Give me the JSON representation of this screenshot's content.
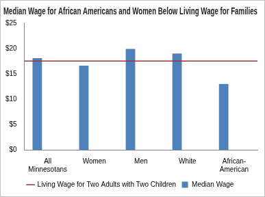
{
  "chart_data": {
    "type": "bar",
    "title": "Median Wage for African Americans and Women Below Living Wage for Families",
    "categories": [
      "All Minnesotans",
      "Women",
      "Men",
      "White",
      "African-American"
    ],
    "series": [
      {
        "name": "Median Wage",
        "type": "bar",
        "color": "#4f81bd",
        "values": [
          18.1,
          16.6,
          19.9,
          19.0,
          13.0
        ]
      },
      {
        "name": "Living Wage for Two Adults with Two Children",
        "type": "line",
        "color": "#953735",
        "values": [
          17.5,
          17.5,
          17.5,
          17.5,
          17.5
        ]
      }
    ],
    "ylim": [
      0,
      25
    ],
    "yticks": [
      {
        "value": 0,
        "label": "$0"
      },
      {
        "value": 5,
        "label": "$5"
      },
      {
        "value": 10,
        "label": "$10"
      },
      {
        "value": 15,
        "label": "$15"
      },
      {
        "value": 20,
        "label": "$20"
      },
      {
        "value": 25,
        "label": "$25"
      }
    ],
    "grid": false,
    "legend": "bottom"
  }
}
